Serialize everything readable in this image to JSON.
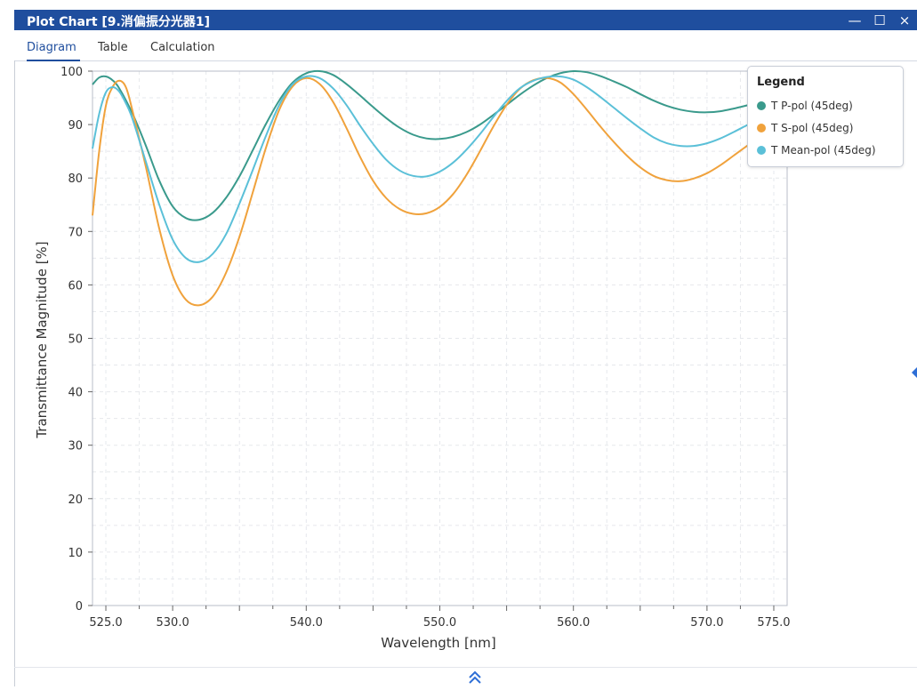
{
  "window": {
    "title": "Plot Chart [9.消偏振分光器1]",
    "minimize_glyph": "—",
    "maximize_glyph": "☐",
    "close_glyph": "×"
  },
  "tabs": [
    {
      "label": "Diagram",
      "active": true
    },
    {
      "label": "Table",
      "active": false
    },
    {
      "label": "Calculation",
      "active": false
    }
  ],
  "colors": {
    "titlebar": "#1f4e9e",
    "p_pol": "#3a9a8c",
    "s_pol": "#f0a23c",
    "mean_pol": "#5bc0d8",
    "accent": "#2f6fd6"
  },
  "icons": {
    "collapse": "double-chevron-up-icon",
    "side_handle": "chevron-left-icon"
  },
  "chart_data": {
    "type": "line",
    "xlabel": "Wavelength [nm]",
    "ylabel": "Transmittance Magnitude [%]",
    "xlim": [
      524.0,
      576.0
    ],
    "ylim": [
      0,
      100
    ],
    "xticks": [
      525.0,
      530.0,
      540.0,
      550.0,
      560.0,
      570.0,
      575.0
    ],
    "xtick_labels": [
      "525.0",
      "530.0",
      "540.0",
      "550.0",
      "560.0",
      "570.0",
      "575.0"
    ],
    "yticks": [
      0,
      10,
      20,
      30,
      40,
      50,
      60,
      70,
      80,
      90,
      100
    ],
    "ytick_labels": [
      "0",
      "10",
      "20",
      "30",
      "40",
      "50",
      "60",
      "70",
      "80",
      "90",
      "100"
    ],
    "grid": true,
    "legend": {
      "title": "Legend",
      "position": "top-right"
    },
    "series": [
      {
        "name": "T P-pol (45deg)",
        "color": "#3a9a8c",
        "x": [
          524.0,
          524.5,
          525.0,
          525.5,
          526.0,
          527.0,
          528.0,
          529.0,
          530.0,
          531.0,
          532.0,
          533.0,
          534.0,
          535.0,
          536.0,
          537.0,
          538.0,
          539.0,
          540.0,
          541.0,
          542.0,
          543.0,
          544.0,
          545.0,
          546.0,
          547.0,
          548.0,
          549.0,
          550.0,
          551.0,
          552.0,
          553.0,
          554.0,
          555.0,
          556.0,
          557.0,
          558.0,
          559.0,
          560.0,
          561.0,
          562.0,
          563.0,
          564.0,
          565.0,
          566.0,
          567.0,
          568.0,
          569.0,
          570.0,
          571.0,
          572.0,
          573.0,
          574.0,
          575.0
        ],
        "y": [
          97.5,
          98.8,
          99.0,
          98.3,
          96.8,
          92.0,
          86.0,
          79.5,
          74.7,
          72.5,
          72.2,
          73.5,
          76.3,
          80.3,
          85.2,
          90.2,
          94.6,
          97.9,
          99.6,
          100.0,
          99.3,
          97.6,
          95.5,
          93.3,
          91.2,
          89.4,
          88.1,
          87.4,
          87.3,
          87.7,
          88.6,
          90.0,
          91.8,
          93.7,
          95.6,
          97.3,
          98.7,
          99.6,
          100.0,
          99.8,
          99.1,
          98.1,
          97.0,
          95.7,
          94.5,
          93.5,
          92.8,
          92.4,
          92.3,
          92.5,
          93.0,
          93.6,
          94.2,
          94.8
        ]
      },
      {
        "name": "T S-pol (45deg)",
        "color": "#f0a23c",
        "x": [
          524.0,
          524.5,
          525.0,
          525.5,
          526.0,
          526.5,
          527.0,
          528.0,
          529.0,
          530.0,
          531.0,
          532.0,
          533.0,
          534.0,
          535.0,
          536.0,
          537.0,
          538.0,
          539.0,
          540.0,
          541.0,
          542.0,
          543.0,
          544.0,
          545.0,
          546.0,
          547.0,
          548.0,
          549.0,
          550.0,
          551.0,
          552.0,
          553.0,
          554.0,
          555.0,
          556.0,
          557.0,
          558.0,
          559.0,
          560.0,
          561.0,
          562.0,
          563.0,
          564.0,
          565.0,
          566.0,
          567.0,
          568.0,
          569.0,
          570.0,
          571.0,
          572.0,
          573.0,
          574.0,
          575.0
        ],
        "y": [
          73.0,
          85.0,
          93.5,
          97.0,
          98.2,
          97.0,
          92.5,
          82.0,
          70.5,
          61.8,
          57.2,
          56.2,
          57.8,
          62.3,
          69.0,
          77.3,
          85.8,
          92.9,
          97.2,
          98.7,
          97.6,
          94.3,
          89.4,
          84.1,
          79.5,
          76.2,
          74.2,
          73.3,
          73.4,
          74.6,
          77.0,
          80.6,
          85.0,
          89.6,
          93.7,
          96.7,
          98.3,
          98.7,
          97.9,
          95.7,
          92.8,
          89.7,
          86.8,
          84.2,
          82.0,
          80.4,
          79.6,
          79.4,
          79.9,
          80.9,
          82.4,
          84.2,
          86.0,
          87.7,
          89.0
        ]
      },
      {
        "name": "T Mean-pol (45deg)",
        "color": "#5bc0d8",
        "x": [
          524.0,
          524.5,
          525.0,
          525.5,
          526.0,
          526.5,
          527.0,
          528.0,
          529.0,
          530.0,
          531.0,
          532.0,
          533.0,
          534.0,
          535.0,
          536.0,
          537.0,
          538.0,
          539.0,
          540.0,
          541.0,
          542.0,
          543.0,
          544.0,
          545.0,
          546.0,
          547.0,
          548.0,
          549.0,
          550.0,
          551.0,
          552.0,
          553.0,
          554.0,
          555.0,
          556.0,
          557.0,
          558.0,
          559.0,
          560.0,
          561.0,
          562.0,
          563.0,
          564.0,
          565.0,
          566.0,
          567.0,
          568.0,
          569.0,
          570.0,
          571.0,
          572.0,
          573.0,
          574.0,
          575.0
        ],
        "y": [
          85.5,
          92.0,
          96.0,
          97.0,
          96.2,
          94.0,
          91.0,
          83.0,
          75.0,
          68.5,
          65.0,
          64.3,
          65.8,
          69.5,
          75.2,
          81.5,
          88.0,
          93.8,
          97.6,
          99.0,
          98.7,
          96.8,
          93.7,
          89.9,
          86.4,
          83.4,
          81.4,
          80.4,
          80.3,
          81.2,
          82.9,
          85.3,
          88.2,
          91.4,
          94.4,
          96.8,
          98.2,
          98.9,
          99.0,
          98.4,
          97.0,
          95.2,
          93.2,
          91.2,
          89.3,
          87.6,
          86.5,
          86.0,
          86.0,
          86.5,
          87.4,
          88.6,
          89.9,
          91.2,
          92.2
        ]
      }
    ]
  }
}
